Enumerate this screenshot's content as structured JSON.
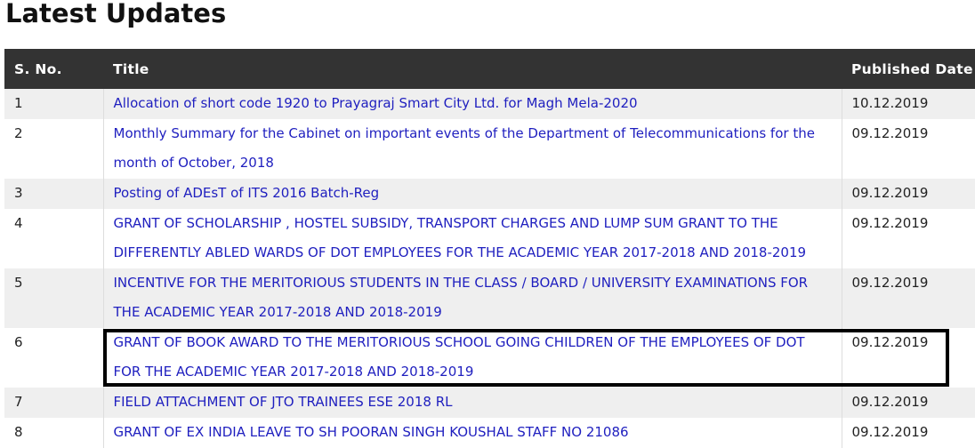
{
  "heading": "Latest Updates",
  "columns": [
    "S. No.",
    "Title",
    "Published Date"
  ],
  "rows": [
    {
      "sno": "1",
      "title": "Allocation of short code 1920 to Prayagraj Smart City Ltd. for Magh Mela-2020",
      "date": "10.12.2019"
    },
    {
      "sno": "2",
      "title": "Monthly Summary for the Cabinet on important events of the Department of Telecommunications for the month of October, 2018",
      "date": "09.12.2019"
    },
    {
      "sno": "3",
      "title": "Posting of ADEsT of ITS 2016 Batch-Reg",
      "date": "09.12.2019"
    },
    {
      "sno": "4",
      "title": "GRANT OF SCHOLARSHIP , HOSTEL SUBSIDY, TRANSPORT CHARGES AND LUMP SUM GRANT TO THE DIFFERENTLY ABLED WARDS OF DOT EMPLOYEES FOR THE ACADEMIC YEAR 2017-2018 AND 2018-2019",
      "date": "09.12.2019"
    },
    {
      "sno": "5",
      "title": "INCENTIVE FOR THE MERITORIOUS STUDENTS IN THE CLASS / BOARD / UNIVERSITY EXAMINATIONS FOR THE ACADEMIC YEAR 2017-2018 AND 2018-2019",
      "date": "09.12.2019"
    },
    {
      "sno": "6",
      "title": "GRANT OF BOOK AWARD TO THE MERITORIOUS SCHOOL GOING CHILDREN OF THE EMPLOYEES OF DOT FOR THE ACADEMIC YEAR 2017-2018 AND 2018-2019",
      "date": "09.12.2019"
    },
    {
      "sno": "7",
      "title": "FIELD ATTACHMENT OF JTO TRAINEES ESE 2018 RL",
      "date": "09.12.2019"
    },
    {
      "sno": "8",
      "title": "GRANT OF EX INDIA LEAVE TO SH POORAN SINGH KOUSHAL STAFF NO 21086",
      "date": "09.12.2019"
    }
  ],
  "highlighted_row": "6"
}
